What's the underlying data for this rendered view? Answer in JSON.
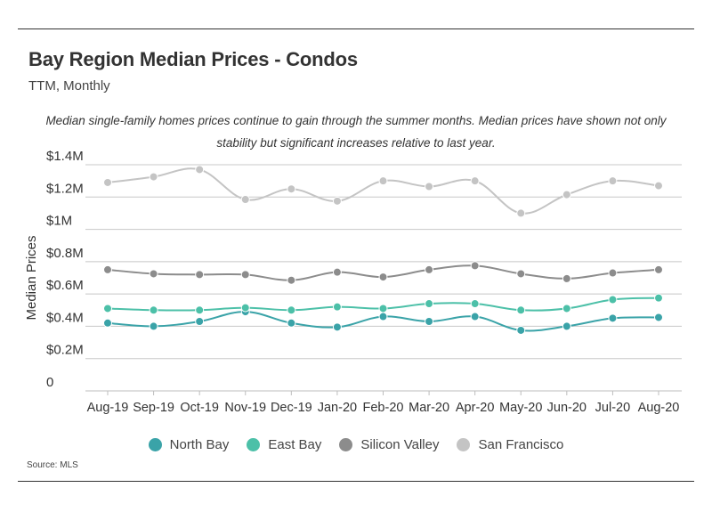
{
  "title": "Bay Region Median Prices - Condos",
  "subtitle": "TTM, Monthly",
  "annotation": "Median single-family homes prices continue to gain through the summer months. Median prices have shown not only stability but significant increases relative to last year.",
  "source": "Source:  MLS",
  "chart_data": {
    "type": "line",
    "title": "Bay Region Median Prices - Condos",
    "subtitle": "TTM, Monthly",
    "xlabel": "",
    "ylabel": "Median Prices",
    "categories": [
      "Aug-19",
      "Sep-19",
      "Oct-19",
      "Nov-19",
      "Dec-19",
      "Jan-20",
      "Feb-20",
      "Mar-20",
      "Apr-20",
      "May-20",
      "Jun-20",
      "Jul-20",
      "Aug-20"
    ],
    "y_ticks": [
      0,
      200000,
      400000,
      600000,
      800000,
      1000000,
      1200000,
      1400000
    ],
    "y_tick_labels": [
      "0",
      "$0.2M",
      "$0.4M",
      "$0.6M",
      "$0.8M",
      "$1M",
      "$1.2M",
      "$1.4M"
    ],
    "ylim": [
      0,
      1400000
    ],
    "grid": true,
    "smooth": true,
    "legend_position": "bottom",
    "series": [
      {
        "name": "North Bay",
        "color": "#3aa3a8",
        "values": [
          420000,
          400000,
          430000,
          490000,
          420000,
          395000,
          460000,
          430000,
          460000,
          375000,
          400000,
          450000,
          455000
        ]
      },
      {
        "name": "East Bay",
        "color": "#4cc0a8",
        "values": [
          510000,
          500000,
          500000,
          515000,
          500000,
          520000,
          510000,
          540000,
          540000,
          500000,
          510000,
          565000,
          575000
        ]
      },
      {
        "name": "Silicon Valley",
        "color": "#8c8c8c",
        "values": [
          750000,
          725000,
          720000,
          720000,
          685000,
          735000,
          705000,
          750000,
          775000,
          725000,
          695000,
          730000,
          750000
        ]
      },
      {
        "name": "San Francisco",
        "color": "#c4c4c4",
        "values": [
          1290000,
          1325000,
          1370000,
          1185000,
          1250000,
          1175000,
          1300000,
          1265000,
          1300000,
          1100000,
          1215000,
          1300000,
          1270000
        ]
      }
    ]
  }
}
